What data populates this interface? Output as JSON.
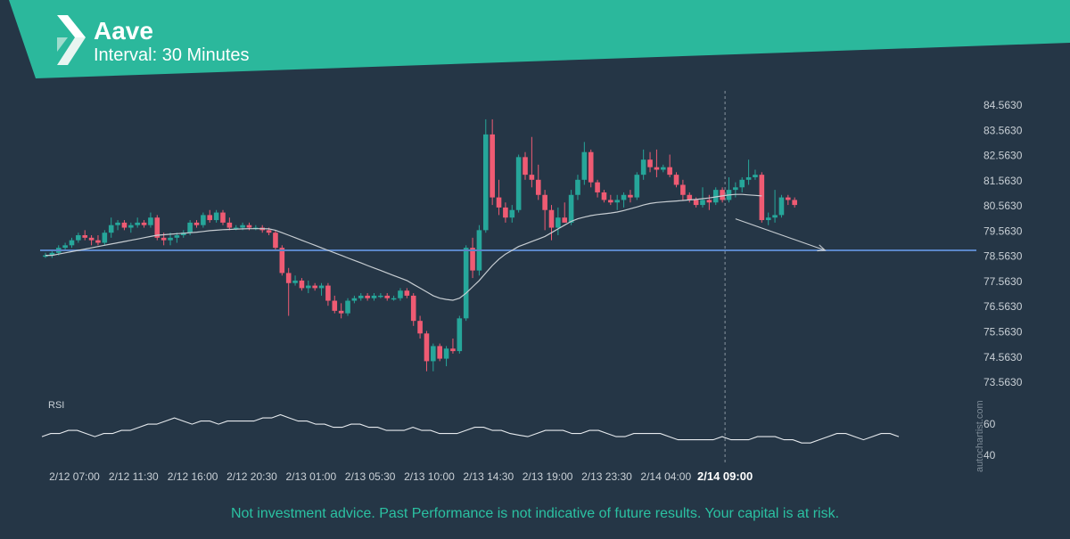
{
  "header": {
    "title": "Aave",
    "subtitle": "Interval: 30 Minutes"
  },
  "disclaimer": "Not investment advice. Past Performance is not indicative of future results. Your capital is at risk.",
  "watermark": "autochartist.com",
  "colors": {
    "background": "#253646",
    "header": "#2bb89c",
    "bull": "#26a69a",
    "bear": "#ef5b73",
    "level_line": "#5a86c8",
    "ma_line": "#c7cdd2",
    "axis_text": "#c9d0d6",
    "disclaimer": "#2bc1a2"
  },
  "chart_data": [
    {
      "type": "candlestick",
      "title": "",
      "interval": "30 Minutes",
      "y_ticks": [
        "84.5630",
        "83.5630",
        "82.5630",
        "81.5630",
        "80.5630",
        "79.5630",
        "78.5630",
        "77.5630",
        "76.5630",
        "75.5630",
        "74.5630",
        "73.5630"
      ],
      "ylim": [
        73.0,
        85.2
      ],
      "x_ticks": [
        "2/12 07:00",
        "2/12 11:30",
        "2/12 16:00",
        "2/12 20:30",
        "2/13 01:00",
        "2/13 05:30",
        "2/13 10:00",
        "2/13 14:30",
        "2/13 19:00",
        "2/13 23:30",
        "2/14 04:00",
        "2/14 09:00"
      ],
      "x_tick_index": [
        4,
        13,
        22,
        31,
        40,
        49,
        58,
        67,
        76,
        85,
        94,
        103
      ],
      "highlight_tick": "2/14 09:00",
      "ohlc": [
        [
          78.6,
          78.7,
          78.5,
          78.6
        ],
        [
          78.6,
          78.8,
          78.5,
          78.7
        ],
        [
          78.7,
          79.0,
          78.6,
          78.9
        ],
        [
          78.9,
          79.1,
          78.8,
          79.0
        ],
        [
          79.0,
          79.3,
          78.9,
          79.2
        ],
        [
          79.2,
          79.5,
          79.1,
          79.4
        ],
        [
          79.4,
          79.6,
          79.2,
          79.3
        ],
        [
          79.3,
          79.4,
          79.0,
          79.2
        ],
        [
          79.2,
          79.4,
          79.0,
          79.1
        ],
        [
          79.1,
          79.6,
          79.0,
          79.5
        ],
        [
          79.5,
          80.1,
          79.3,
          79.8
        ],
        [
          79.8,
          80.0,
          79.6,
          79.9
        ],
        [
          79.9,
          80.0,
          79.6,
          79.7
        ],
        [
          79.7,
          79.9,
          79.5,
          79.8
        ],
        [
          79.8,
          80.1,
          79.7,
          79.9
        ],
        [
          79.9,
          80.0,
          79.7,
          79.8
        ],
        [
          79.8,
          80.3,
          79.7,
          80.1
        ],
        [
          80.1,
          80.2,
          79.2,
          79.3
        ],
        [
          79.3,
          79.5,
          79.0,
          79.2
        ],
        [
          79.2,
          79.5,
          79.0,
          79.3
        ],
        [
          79.3,
          79.5,
          79.1,
          79.4
        ],
        [
          79.4,
          79.6,
          79.3,
          79.5
        ],
        [
          79.5,
          80.0,
          79.4,
          79.9
        ],
        [
          79.9,
          80.0,
          79.7,
          79.8
        ],
        [
          79.8,
          80.3,
          79.7,
          80.2
        ],
        [
          80.2,
          80.4,
          79.9,
          80.0
        ],
        [
          80.0,
          80.4,
          79.9,
          80.3
        ],
        [
          80.3,
          80.4,
          79.8,
          79.9
        ],
        [
          79.9,
          80.1,
          79.6,
          79.7
        ],
        [
          79.7,
          79.8,
          79.6,
          79.7
        ],
        [
          79.7,
          79.9,
          79.6,
          79.8
        ],
        [
          79.8,
          79.9,
          79.6,
          79.7
        ],
        [
          79.7,
          79.8,
          79.6,
          79.7
        ],
        [
          79.7,
          79.8,
          79.5,
          79.6
        ],
        [
          79.6,
          79.7,
          79.4,
          79.5
        ],
        [
          79.5,
          79.6,
          78.8,
          78.9
        ],
        [
          78.9,
          79.0,
          77.8,
          77.9
        ],
        [
          77.9,
          78.1,
          76.2,
          77.5
        ],
        [
          77.5,
          77.8,
          77.4,
          77.6
        ],
        [
          77.6,
          77.7,
          77.2,
          77.3
        ],
        [
          77.3,
          77.6,
          77.1,
          77.4
        ],
        [
          77.4,
          77.5,
          77.2,
          77.3
        ],
        [
          77.3,
          77.5,
          77.0,
          77.4
        ],
        [
          77.4,
          77.5,
          76.6,
          76.8
        ],
        [
          76.8,
          77.0,
          76.3,
          76.4
        ],
        [
          76.4,
          76.7,
          76.1,
          76.3
        ],
        [
          76.3,
          76.9,
          76.2,
          76.8
        ],
        [
          76.8,
          77.0,
          76.7,
          76.9
        ],
        [
          76.9,
          77.1,
          76.8,
          77.0
        ],
        [
          77.0,
          77.1,
          76.8,
          76.9
        ],
        [
          76.9,
          77.1,
          76.8,
          77.0
        ],
        [
          77.0,
          77.1,
          76.9,
          77.0
        ],
        [
          77.0,
          77.1,
          76.8,
          76.9
        ],
        [
          76.9,
          77.0,
          76.8,
          76.9
        ],
        [
          76.9,
          77.3,
          76.8,
          77.2
        ],
        [
          77.2,
          77.3,
          76.9,
          77.0
        ],
        [
          77.0,
          77.1,
          75.8,
          76.0
        ],
        [
          76.0,
          76.2,
          75.3,
          75.5
        ],
        [
          75.5,
          75.6,
          74.0,
          74.4
        ],
        [
          74.4,
          75.1,
          74.0,
          75.0
        ],
        [
          75.0,
          75.1,
          74.4,
          74.5
        ],
        [
          74.5,
          75.0,
          74.2,
          74.9
        ],
        [
          74.9,
          75.3,
          74.7,
          74.8
        ],
        [
          74.8,
          76.2,
          74.7,
          76.1
        ],
        [
          76.1,
          79.0,
          76.0,
          78.9
        ],
        [
          78.9,
          79.3,
          77.7,
          78.0
        ],
        [
          78.0,
          79.8,
          77.8,
          79.6
        ],
        [
          79.6,
          84.0,
          79.5,
          83.4
        ],
        [
          83.4,
          84.0,
          80.6,
          80.9
        ],
        [
          80.9,
          81.6,
          80.2,
          80.5
        ],
        [
          80.5,
          80.7,
          79.9,
          80.1
        ],
        [
          80.1,
          80.6,
          79.9,
          80.4
        ],
        [
          80.4,
          82.6,
          80.3,
          82.5
        ],
        [
          82.5,
          82.7,
          81.6,
          81.8
        ],
        [
          81.8,
          83.3,
          81.3,
          81.6
        ],
        [
          81.6,
          82.2,
          80.8,
          81.0
        ],
        [
          81.0,
          81.2,
          79.6,
          80.4
        ],
        [
          80.4,
          80.6,
          79.2,
          79.7
        ],
        [
          79.7,
          80.5,
          79.4,
          80.1
        ],
        [
          80.1,
          80.7,
          79.9,
          79.9
        ],
        [
          79.9,
          81.2,
          79.8,
          81.0
        ],
        [
          81.0,
          81.8,
          80.8,
          81.6
        ],
        [
          81.6,
          83.1,
          81.4,
          82.7
        ],
        [
          82.7,
          82.8,
          81.3,
          81.5
        ],
        [
          81.5,
          81.6,
          80.9,
          81.1
        ],
        [
          81.1,
          81.2,
          80.7,
          80.8
        ],
        [
          80.8,
          81.0,
          80.6,
          80.7
        ],
        [
          80.7,
          81.0,
          80.4,
          80.8
        ],
        [
          80.8,
          81.1,
          80.5,
          81.0
        ],
        [
          81.0,
          81.2,
          80.7,
          80.9
        ],
        [
          80.9,
          81.9,
          80.8,
          81.8
        ],
        [
          81.8,
          82.8,
          81.6,
          82.4
        ],
        [
          82.4,
          82.7,
          81.9,
          82.1
        ],
        [
          82.1,
          82.8,
          81.7,
          82.0
        ],
        [
          82.0,
          82.2,
          81.9,
          82.1
        ],
        [
          82.1,
          82.6,
          81.7,
          81.8
        ],
        [
          81.8,
          81.9,
          81.3,
          81.4
        ],
        [
          81.4,
          81.6,
          80.8,
          81.0
        ],
        [
          81.0,
          81.1,
          80.7,
          80.8
        ],
        [
          80.8,
          80.9,
          80.5,
          80.6
        ],
        [
          80.6,
          81.3,
          80.5,
          80.8
        ],
        [
          80.8,
          81.0,
          80.4,
          80.7
        ],
        [
          80.7,
          81.3,
          80.6,
          81.2
        ],
        [
          81.2,
          81.3,
          80.7,
          80.8
        ],
        [
          80.8,
          81.7,
          80.7,
          81.2
        ],
        [
          81.2,
          81.5,
          80.9,
          81.3
        ],
        [
          81.3,
          81.7,
          81.1,
          81.6
        ],
        [
          81.6,
          82.4,
          81.4,
          81.7
        ],
        [
          81.7,
          82.0,
          81.6,
          81.8
        ],
        [
          81.8,
          81.9,
          79.9,
          80.0
        ],
        [
          80.0,
          80.3,
          79.8,
          80.1
        ],
        [
          80.1,
          81.2,
          79.9,
          80.2
        ],
        [
          80.2,
          81.0,
          80.1,
          80.9
        ],
        [
          80.9,
          81.0,
          80.6,
          80.8
        ],
        [
          80.8,
          80.9,
          80.5,
          80.6
        ]
      ],
      "moving_average": [
        78.6,
        78.6,
        78.65,
        78.7,
        78.75,
        78.8,
        78.85,
        78.9,
        78.95,
        79.0,
        79.05,
        79.1,
        79.15,
        79.2,
        79.25,
        79.3,
        79.35,
        79.4,
        79.42,
        79.44,
        79.46,
        79.48,
        79.5,
        79.52,
        79.55,
        79.58,
        79.6,
        79.62,
        79.63,
        79.64,
        79.65,
        79.66,
        79.66,
        79.66,
        79.65,
        79.6,
        79.5,
        79.4,
        79.3,
        79.2,
        79.1,
        79.0,
        78.9,
        78.8,
        78.7,
        78.6,
        78.5,
        78.4,
        78.3,
        78.2,
        78.1,
        78.0,
        77.9,
        77.8,
        77.7,
        77.6,
        77.45,
        77.3,
        77.15,
        77.0,
        76.9,
        76.85,
        76.82,
        76.9,
        77.1,
        77.35,
        77.6,
        77.9,
        78.2,
        78.45,
        78.65,
        78.8,
        78.95,
        79.05,
        79.15,
        79.25,
        79.35,
        79.5,
        79.65,
        79.8,
        79.95,
        80.05,
        80.12,
        80.18,
        80.22,
        80.25,
        80.28,
        80.32,
        80.38,
        80.45,
        80.52,
        80.6,
        80.66,
        80.7,
        80.72,
        80.74,
        80.76,
        80.78,
        80.8,
        80.82,
        80.85,
        80.88,
        80.92,
        80.96,
        81.0,
        81.02,
        81.02,
        81.0,
        80.98,
        80.96
      ],
      "support_level": 78.8,
      "projection": {
        "from": [
          105,
          80.05
        ],
        "to": [
          120,
          78.8
        ]
      },
      "rsi": {
        "label": "RSI",
        "ticks": [
          "60",
          "40"
        ],
        "ylim": [
          35,
          72
        ],
        "values": [
          52,
          54,
          54,
          56,
          56,
          54,
          52,
          54,
          54,
          56,
          56,
          58,
          60,
          60,
          62,
          64,
          62,
          60,
          62,
          62,
          60,
          62,
          62,
          62,
          62,
          64,
          64,
          66,
          64,
          62,
          62,
          60,
          60,
          58,
          58,
          60,
          60,
          58,
          58,
          56,
          56,
          56,
          58,
          56,
          56,
          54,
          54,
          54,
          56,
          58,
          58,
          56,
          56,
          54,
          53,
          52,
          54,
          56,
          56,
          56,
          54,
          54,
          56,
          56,
          54,
          52,
          52,
          54,
          54,
          54,
          54,
          52,
          50,
          50,
          50,
          50,
          50,
          52,
          50,
          50,
          50,
          52,
          52,
          52,
          50,
          50,
          48,
          48,
          50,
          52,
          54,
          54,
          52,
          50,
          52,
          54,
          54,
          52
        ]
      }
    }
  ]
}
